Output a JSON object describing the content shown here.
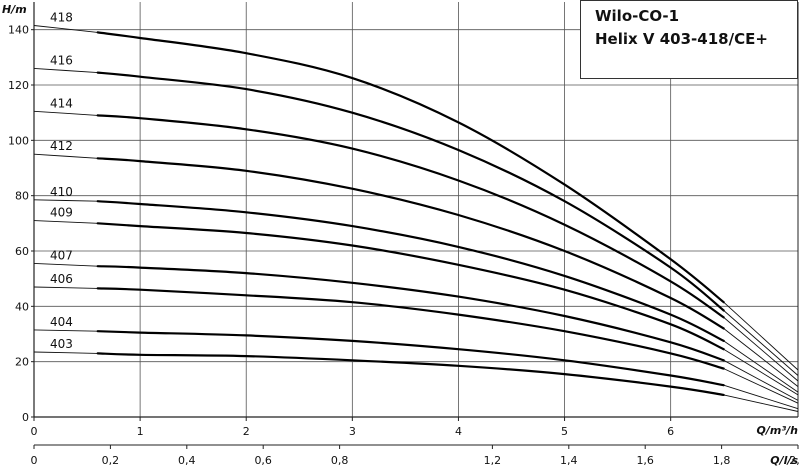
{
  "title": {
    "line1": "Wilo-CO-1",
    "line2": "Helix V 403-418/CE+"
  },
  "chart_data": {
    "type": "line",
    "ylabel": "H/m",
    "xlabel_top": "Q/m³/h",
    "xlabel_bottom": "Q/l/s",
    "ylim": [
      0,
      150
    ],
    "xlim": [
      0,
      7.2
    ],
    "x_ticks": [
      "0",
      "1",
      "2",
      "3",
      "4",
      "5",
      "6"
    ],
    "y_ticks": [
      "0",
      "20",
      "40",
      "60",
      "80",
      "100",
      "120",
      "140"
    ],
    "x2_ticks": [
      "0",
      "0,2",
      "0,4",
      "0,6",
      "0,8",
      "1,2",
      "1,4",
      "1,6",
      "1,8",
      "2,0"
    ],
    "x2_tick_values": [
      0,
      0.2,
      0.4,
      0.6,
      0.8,
      1.2,
      1.4,
      1.6,
      1.8,
      2.0
    ],
    "grid": true,
    "series": [
      {
        "name": "418",
        "x": [
          0,
          0.6,
          1,
          2,
          3,
          4,
          5,
          6,
          6.5,
          7.2
        ],
        "y": [
          141.5,
          139,
          137,
          131.5,
          122.5,
          106.5,
          84,
          57,
          41.5,
          17
        ]
      },
      {
        "name": "416",
        "x": [
          0,
          0.6,
          1,
          2,
          3,
          4,
          5,
          6,
          6.5,
          7.2
        ],
        "y": [
          126,
          124.5,
          123,
          118.5,
          110,
          96.5,
          78,
          54,
          38.5,
          15
        ]
      },
      {
        "name": "414",
        "x": [
          0,
          0.6,
          1,
          2,
          3,
          4,
          5,
          6,
          6.5,
          7.2
        ],
        "y": [
          110.5,
          109,
          108,
          104,
          97,
          85.5,
          69.5,
          49,
          36,
          13
        ]
      },
      {
        "name": "412",
        "x": [
          0,
          0.6,
          1,
          2,
          3,
          4,
          5,
          6,
          6.5,
          7.2
        ],
        "y": [
          95,
          93.5,
          92.5,
          89,
          82.5,
          73,
          60,
          43,
          32,
          11
        ]
      },
      {
        "name": "410",
        "x": [
          0,
          0.6,
          1,
          2,
          3,
          4,
          5,
          6,
          6.5,
          7.2
        ],
        "y": [
          78.5,
          78,
          77,
          74,
          69,
          61.5,
          51,
          37,
          27.5,
          9
        ]
      },
      {
        "name": "409",
        "x": [
          0,
          0.6,
          1,
          2,
          3,
          4,
          5,
          6,
          6.5,
          7.2
        ],
        "y": [
          71,
          70,
          69,
          66.5,
          62,
          55,
          46,
          33.5,
          24.5,
          8
        ]
      },
      {
        "name": "407",
        "x": [
          0,
          0.6,
          1,
          2,
          3,
          4,
          5,
          6,
          6.5,
          7.2
        ],
        "y": [
          55.5,
          54.5,
          54,
          52,
          48.5,
          43.5,
          36.5,
          27,
          20.5,
          6
        ]
      },
      {
        "name": "406",
        "x": [
          0,
          0.6,
          1,
          2,
          3,
          4,
          5,
          6,
          6.5,
          7.2
        ],
        "y": [
          47,
          46.5,
          46,
          44,
          41.5,
          37,
          31,
          23,
          17.5,
          5
        ]
      },
      {
        "name": "404",
        "x": [
          0,
          0.6,
          1,
          2,
          3,
          4,
          5,
          6,
          6.5,
          7.2
        ],
        "y": [
          31.5,
          31,
          30.5,
          29.5,
          27.5,
          24.5,
          20.5,
          15,
          11.5,
          3
        ]
      },
      {
        "name": "403",
        "x": [
          0,
          0.6,
          1,
          2,
          3,
          4,
          5,
          6,
          6.5,
          7.2
        ],
        "y": [
          23.5,
          23,
          22.5,
          22,
          20.5,
          18.5,
          15.5,
          11,
          8,
          2
        ]
      }
    ]
  }
}
